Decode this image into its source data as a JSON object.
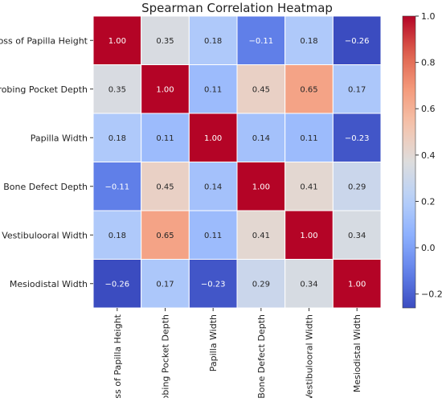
{
  "chart_data": {
    "type": "heatmap",
    "title": "Spearman Correlation Heatmap",
    "row_labels": [
      "Loss of Papilla Height",
      "Probing Pocket Depth",
      "Papilla Width",
      "Bone Defect Depth",
      "Vestibulooral Width",
      "Mesiodistal Width"
    ],
    "col_labels": [
      "Loss of Papilla Height",
      "Probing Pocket Depth",
      "Papilla Width",
      "Bone Defect Depth",
      "Vestibulooral Width",
      "Mesiodistal Width"
    ],
    "values": [
      [
        1.0,
        0.35,
        0.18,
        -0.11,
        0.18,
        -0.26
      ],
      [
        0.35,
        1.0,
        0.11,
        0.45,
        0.65,
        0.17
      ],
      [
        0.18,
        0.11,
        1.0,
        0.14,
        0.11,
        -0.23
      ],
      [
        -0.11,
        0.45,
        0.14,
        1.0,
        0.41,
        0.29
      ],
      [
        0.18,
        0.65,
        0.11,
        0.41,
        1.0,
        0.34
      ],
      [
        -0.26,
        0.17,
        -0.23,
        0.29,
        0.34,
        1.0
      ]
    ],
    "value_labels": [
      [
        "1.00",
        "0.35",
        "0.18",
        "−0.11",
        "0.18",
        "−0.26"
      ],
      [
        "0.35",
        "1.00",
        "0.11",
        "0.45",
        "0.65",
        "0.17"
      ],
      [
        "0.18",
        "0.11",
        "1.00",
        "0.14",
        "0.11",
        "−0.23"
      ],
      [
        "−0.11",
        "0.45",
        "0.14",
        "1.00",
        "0.41",
        "0.29"
      ],
      [
        "0.18",
        "0.65",
        "0.11",
        "0.41",
        "1.00",
        "0.34"
      ],
      [
        "−0.26",
        "0.17",
        "−0.23",
        "0.29",
        "0.34",
        "1.00"
      ]
    ],
    "colormap": "coolwarm",
    "vmin": -0.26,
    "vmax": 1.0,
    "colorbar_ticks": [
      -0.2,
      0.0,
      0.2,
      0.4,
      0.6,
      0.8,
      1.0
    ],
    "colorbar_tick_labels": [
      "−0.2",
      "0.0",
      "0.2",
      "0.4",
      "0.6",
      "0.8",
      "1.0"
    ],
    "cell_border_color": "#ffffff",
    "legend": "colorbar-right"
  }
}
